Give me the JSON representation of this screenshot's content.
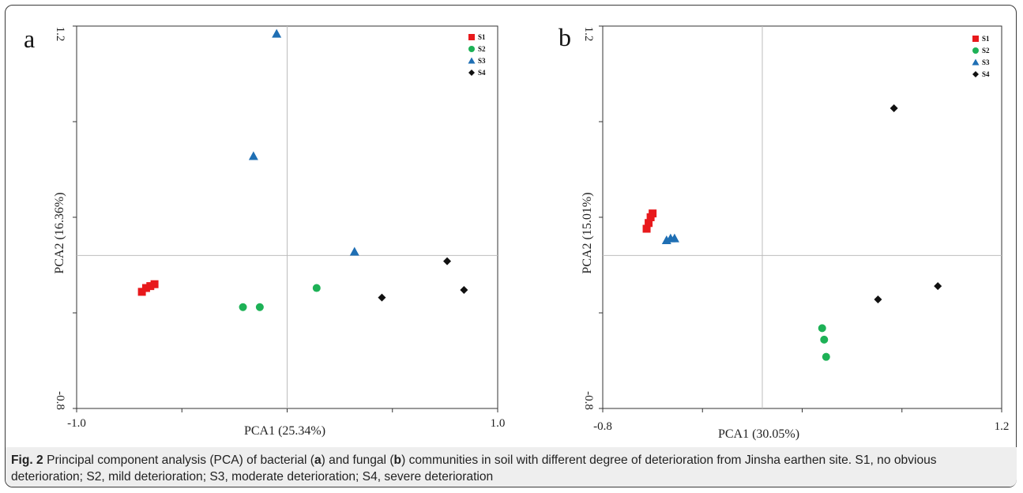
{
  "chart_data": [
    {
      "panel_label": "a",
      "type": "scatter",
      "xlabel": "PCA1 (25.34%)",
      "ylabel": "PCA2 (16.36%)",
      "xlim": [
        -1.0,
        1.0
      ],
      "ylim": [
        -0.8,
        1.2
      ],
      "x_tick_labels": [
        "-1.0",
        "1.0"
      ],
      "y_tick_labels": [
        "1.2",
        "-0.8"
      ],
      "grid": false,
      "reference_lines": {
        "x": 0,
        "y": 0
      },
      "legend_position": "top-right",
      "series": [
        {
          "name": "S1",
          "marker": "square",
          "color": "#e8191c",
          "points": [
            [
              -0.69,
              -0.19
            ],
            [
              -0.67,
              -0.17
            ],
            [
              -0.65,
              -0.16
            ],
            [
              -0.63,
              -0.15
            ]
          ]
        },
        {
          "name": "S2",
          "marker": "circle",
          "color": "#1db156",
          "points": [
            [
              -0.21,
              -0.27
            ],
            [
              -0.13,
              -0.27
            ],
            [
              0.14,
              -0.17
            ]
          ]
        },
        {
          "name": "S3",
          "marker": "triangle",
          "color": "#1f6fb4",
          "points": [
            [
              -0.05,
              1.16
            ],
            [
              -0.16,
              0.52
            ],
            [
              0.32,
              0.02
            ]
          ]
        },
        {
          "name": "S4",
          "marker": "diamond",
          "color": "#111111",
          "points": [
            [
              0.45,
              -0.22
            ],
            [
              0.76,
              -0.03
            ],
            [
              0.84,
              -0.18
            ]
          ]
        }
      ]
    },
    {
      "panel_label": "b",
      "type": "scatter",
      "xlabel": "PCA1 (30.05%)",
      "ylabel": "PCA2 (15.01%)",
      "xlim": [
        -0.8,
        1.2
      ],
      "ylim": [
        -0.8,
        1.2
      ],
      "x_tick_labels": [
        "-0.8",
        "1.2"
      ],
      "y_tick_labels": [
        "1.2",
        "-0.8"
      ],
      "grid": false,
      "reference_lines": {
        "x": 0,
        "y": 0
      },
      "legend_position": "top-right",
      "series": [
        {
          "name": "S1",
          "marker": "square",
          "color": "#e8191c",
          "points": [
            [
              -0.58,
              0.14
            ],
            [
              -0.57,
              0.17
            ],
            [
              -0.56,
              0.2
            ],
            [
              -0.55,
              0.22
            ]
          ]
        },
        {
          "name": "S2",
          "marker": "circle",
          "color": "#1db156",
          "points": [
            [
              0.3,
              -0.38
            ],
            [
              0.31,
              -0.44
            ],
            [
              0.32,
              -0.53
            ]
          ]
        },
        {
          "name": "S3",
          "marker": "triangle",
          "color": "#1f6fb4",
          "points": [
            [
              -0.48,
              0.08
            ],
            [
              -0.46,
              0.09
            ],
            [
              -0.44,
              0.09
            ]
          ]
        },
        {
          "name": "S4",
          "marker": "diamond",
          "color": "#111111",
          "points": [
            [
              0.66,
              0.77
            ],
            [
              0.58,
              -0.23
            ],
            [
              0.88,
              -0.16
            ]
          ]
        }
      ]
    }
  ],
  "caption": {
    "label": "Fig. 2",
    "text_1": " Principal component analysis (PCA) of bacterial (",
    "bold_a": "a",
    "text_2": ") and fungal (",
    "bold_b": "b",
    "text_3": ") communities in soil with different degree of deterioration from Jinsha earthen site. S1, no obvious deterioration; S2, mild deterioration; S3, moderate deterioration; S4, severe deterioration"
  }
}
